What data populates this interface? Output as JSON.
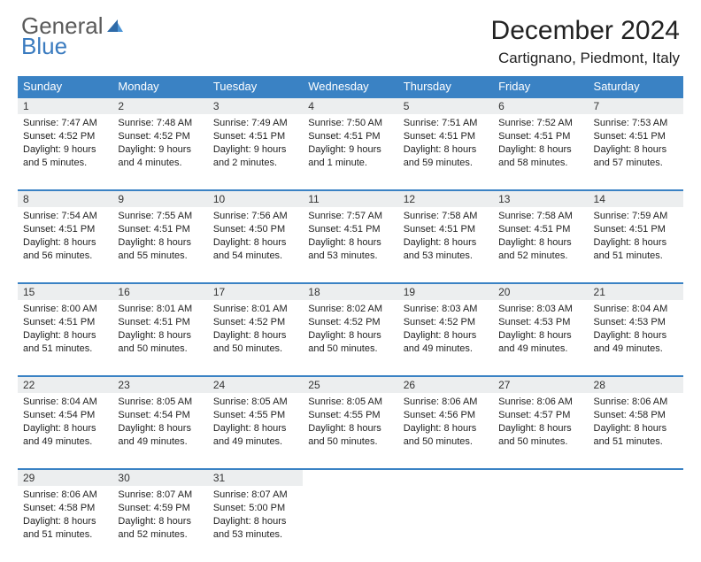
{
  "brand": {
    "part1": "General",
    "part2": "Blue"
  },
  "title": "December 2024",
  "location": "Cartignano, Piedmont, Italy",
  "colors": {
    "header_bg": "#3a82c4",
    "daynum_bg": "#eceeef",
    "row_border": "#3a82c4",
    "text": "#222222",
    "logo_gray": "#5a5a5a",
    "logo_blue": "#3a7bbf"
  },
  "weekdays": [
    "Sunday",
    "Monday",
    "Tuesday",
    "Wednesday",
    "Thursday",
    "Friday",
    "Saturday"
  ],
  "weeks": [
    [
      {
        "n": "1",
        "sunrise": "Sunrise: 7:47 AM",
        "sunset": "Sunset: 4:52 PM",
        "daylight": "Daylight: 9 hours and 5 minutes."
      },
      {
        "n": "2",
        "sunrise": "Sunrise: 7:48 AM",
        "sunset": "Sunset: 4:52 PM",
        "daylight": "Daylight: 9 hours and 4 minutes."
      },
      {
        "n": "3",
        "sunrise": "Sunrise: 7:49 AM",
        "sunset": "Sunset: 4:51 PM",
        "daylight": "Daylight: 9 hours and 2 minutes."
      },
      {
        "n": "4",
        "sunrise": "Sunrise: 7:50 AM",
        "sunset": "Sunset: 4:51 PM",
        "daylight": "Daylight: 9 hours and 1 minute."
      },
      {
        "n": "5",
        "sunrise": "Sunrise: 7:51 AM",
        "sunset": "Sunset: 4:51 PM",
        "daylight": "Daylight: 8 hours and 59 minutes."
      },
      {
        "n": "6",
        "sunrise": "Sunrise: 7:52 AM",
        "sunset": "Sunset: 4:51 PM",
        "daylight": "Daylight: 8 hours and 58 minutes."
      },
      {
        "n": "7",
        "sunrise": "Sunrise: 7:53 AM",
        "sunset": "Sunset: 4:51 PM",
        "daylight": "Daylight: 8 hours and 57 minutes."
      }
    ],
    [
      {
        "n": "8",
        "sunrise": "Sunrise: 7:54 AM",
        "sunset": "Sunset: 4:51 PM",
        "daylight": "Daylight: 8 hours and 56 minutes."
      },
      {
        "n": "9",
        "sunrise": "Sunrise: 7:55 AM",
        "sunset": "Sunset: 4:51 PM",
        "daylight": "Daylight: 8 hours and 55 minutes."
      },
      {
        "n": "10",
        "sunrise": "Sunrise: 7:56 AM",
        "sunset": "Sunset: 4:50 PM",
        "daylight": "Daylight: 8 hours and 54 minutes."
      },
      {
        "n": "11",
        "sunrise": "Sunrise: 7:57 AM",
        "sunset": "Sunset: 4:51 PM",
        "daylight": "Daylight: 8 hours and 53 minutes."
      },
      {
        "n": "12",
        "sunrise": "Sunrise: 7:58 AM",
        "sunset": "Sunset: 4:51 PM",
        "daylight": "Daylight: 8 hours and 53 minutes."
      },
      {
        "n": "13",
        "sunrise": "Sunrise: 7:58 AM",
        "sunset": "Sunset: 4:51 PM",
        "daylight": "Daylight: 8 hours and 52 minutes."
      },
      {
        "n": "14",
        "sunrise": "Sunrise: 7:59 AM",
        "sunset": "Sunset: 4:51 PM",
        "daylight": "Daylight: 8 hours and 51 minutes."
      }
    ],
    [
      {
        "n": "15",
        "sunrise": "Sunrise: 8:00 AM",
        "sunset": "Sunset: 4:51 PM",
        "daylight": "Daylight: 8 hours and 51 minutes."
      },
      {
        "n": "16",
        "sunrise": "Sunrise: 8:01 AM",
        "sunset": "Sunset: 4:51 PM",
        "daylight": "Daylight: 8 hours and 50 minutes."
      },
      {
        "n": "17",
        "sunrise": "Sunrise: 8:01 AM",
        "sunset": "Sunset: 4:52 PM",
        "daylight": "Daylight: 8 hours and 50 minutes."
      },
      {
        "n": "18",
        "sunrise": "Sunrise: 8:02 AM",
        "sunset": "Sunset: 4:52 PM",
        "daylight": "Daylight: 8 hours and 50 minutes."
      },
      {
        "n": "19",
        "sunrise": "Sunrise: 8:03 AM",
        "sunset": "Sunset: 4:52 PM",
        "daylight": "Daylight: 8 hours and 49 minutes."
      },
      {
        "n": "20",
        "sunrise": "Sunrise: 8:03 AM",
        "sunset": "Sunset: 4:53 PM",
        "daylight": "Daylight: 8 hours and 49 minutes."
      },
      {
        "n": "21",
        "sunrise": "Sunrise: 8:04 AM",
        "sunset": "Sunset: 4:53 PM",
        "daylight": "Daylight: 8 hours and 49 minutes."
      }
    ],
    [
      {
        "n": "22",
        "sunrise": "Sunrise: 8:04 AM",
        "sunset": "Sunset: 4:54 PM",
        "daylight": "Daylight: 8 hours and 49 minutes."
      },
      {
        "n": "23",
        "sunrise": "Sunrise: 8:05 AM",
        "sunset": "Sunset: 4:54 PM",
        "daylight": "Daylight: 8 hours and 49 minutes."
      },
      {
        "n": "24",
        "sunrise": "Sunrise: 8:05 AM",
        "sunset": "Sunset: 4:55 PM",
        "daylight": "Daylight: 8 hours and 49 minutes."
      },
      {
        "n": "25",
        "sunrise": "Sunrise: 8:05 AM",
        "sunset": "Sunset: 4:55 PM",
        "daylight": "Daylight: 8 hours and 50 minutes."
      },
      {
        "n": "26",
        "sunrise": "Sunrise: 8:06 AM",
        "sunset": "Sunset: 4:56 PM",
        "daylight": "Daylight: 8 hours and 50 minutes."
      },
      {
        "n": "27",
        "sunrise": "Sunrise: 8:06 AM",
        "sunset": "Sunset: 4:57 PM",
        "daylight": "Daylight: 8 hours and 50 minutes."
      },
      {
        "n": "28",
        "sunrise": "Sunrise: 8:06 AM",
        "sunset": "Sunset: 4:58 PM",
        "daylight": "Daylight: 8 hours and 51 minutes."
      }
    ],
    [
      {
        "n": "29",
        "sunrise": "Sunrise: 8:06 AM",
        "sunset": "Sunset: 4:58 PM",
        "daylight": "Daylight: 8 hours and 51 minutes."
      },
      {
        "n": "30",
        "sunrise": "Sunrise: 8:07 AM",
        "sunset": "Sunset: 4:59 PM",
        "daylight": "Daylight: 8 hours and 52 minutes."
      },
      {
        "n": "31",
        "sunrise": "Sunrise: 8:07 AM",
        "sunset": "Sunset: 5:00 PM",
        "daylight": "Daylight: 8 hours and 53 minutes."
      },
      null,
      null,
      null,
      null
    ]
  ]
}
